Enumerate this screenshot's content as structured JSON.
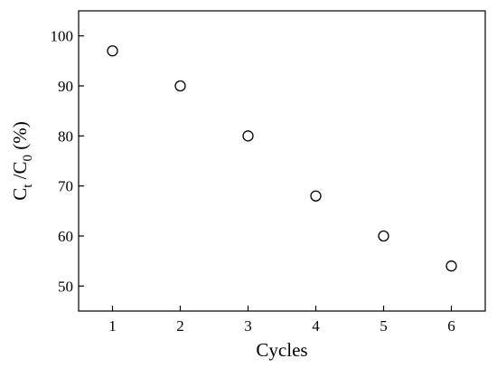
{
  "chart_data": {
    "type": "scatter",
    "xlabel": "Cycles",
    "ylabel": {
      "parts": [
        {
          "text": "C",
          "role": "base"
        },
        {
          "text": "t",
          "role": "sub"
        },
        {
          "text": " /C",
          "role": "base"
        },
        {
          "text": "0",
          "role": "sub"
        },
        {
          "text": " (%)",
          "role": "base"
        }
      ]
    },
    "xlim": [
      0.5,
      6.5
    ],
    "ylim": [
      45,
      105
    ],
    "xticks": [
      1,
      2,
      3,
      4,
      5,
      6
    ],
    "yticks": [
      50,
      60,
      70,
      80,
      90,
      100
    ],
    "grid": false,
    "marker": "open-circle",
    "series": [
      {
        "x": [
          1,
          2,
          3,
          4,
          5,
          6
        ],
        "y": [
          97,
          90,
          80,
          68,
          60,
          54
        ]
      }
    ]
  }
}
